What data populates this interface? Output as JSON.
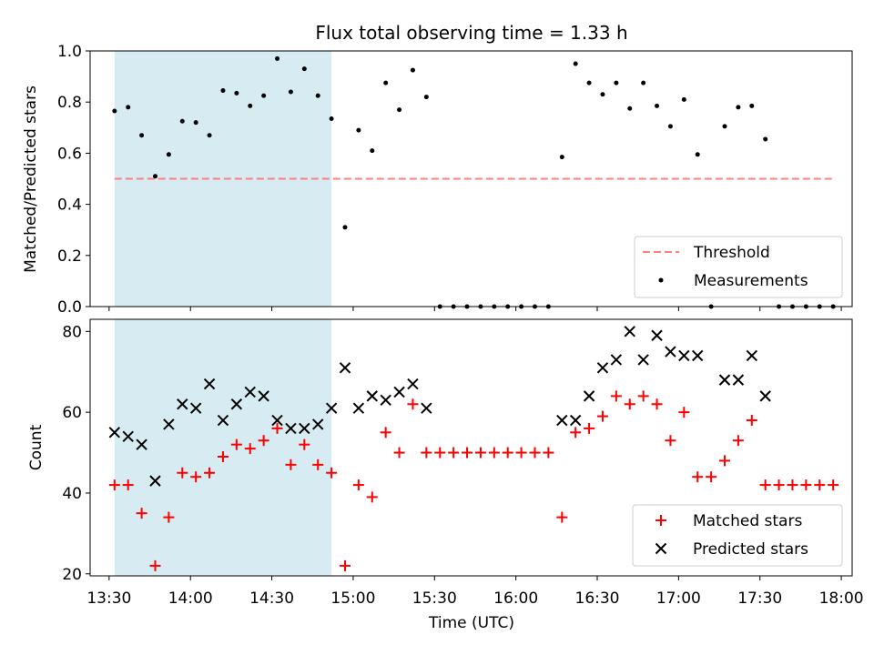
{
  "colors": {
    "threshold": "#ff7f7f",
    "measurement": "#000000",
    "matched": "#ff0000",
    "predicted": "#000000",
    "span": "#add8e6"
  },
  "chart_data": [
    {
      "type": "scatter",
      "title": "Flux total observing time = 1.33 h",
      "xlabel": "",
      "ylabel": "Matched/Predicted stars",
      "xlim": [
        "13:23",
        "18:04"
      ],
      "ylim": [
        0,
        1.0
      ],
      "yticks": [
        "0.0",
        "0.2",
        "0.4",
        "0.6",
        "0.8",
        "1.0"
      ],
      "shaded_span": [
        "13:32",
        "14:52"
      ],
      "legend_position": "lower-right",
      "threshold": {
        "name": "Threshold",
        "y": 0.5,
        "x": [
          "13:32",
          "17:57"
        ],
        "style": "dashed"
      },
      "series": [
        {
          "name": "Measurements",
          "marker": "dot",
          "x": [
            "13:32",
            "13:37",
            "13:42",
            "13:47",
            "13:52",
            "13:57",
            "14:02",
            "14:07",
            "14:12",
            "14:17",
            "14:22",
            "14:27",
            "14:32",
            "14:37",
            "14:42",
            "14:47",
            "14:52",
            "14:57",
            "15:02",
            "15:07",
            "15:12",
            "15:17",
            "15:22",
            "15:27",
            "15:32",
            "15:37",
            "15:42",
            "15:47",
            "15:52",
            "15:57",
            "16:02",
            "16:07",
            "16:12",
            "16:17",
            "16:22",
            "16:27",
            "16:32",
            "16:37",
            "16:42",
            "16:47",
            "16:52",
            "16:57",
            "17:02",
            "17:07",
            "17:12",
            "17:17",
            "17:22",
            "17:27",
            "17:32",
            "17:37",
            "17:42",
            "17:47",
            "17:52",
            "17:57"
          ],
          "y": [
            0.765,
            0.78,
            0.67,
            0.51,
            0.595,
            0.725,
            0.72,
            0.67,
            0.845,
            0.835,
            0.785,
            0.825,
            0.97,
            0.84,
            0.93,
            0.825,
            0.735,
            0.31,
            0.69,
            0.61,
            0.875,
            0.77,
            0.925,
            0.82,
            0.0,
            0.0,
            0.0,
            0.0,
            0.0,
            0.0,
            0.0,
            0.0,
            0.0,
            0.585,
            0.95,
            0.875,
            0.83,
            0.875,
            0.775,
            0.875,
            0.785,
            0.705,
            0.81,
            0.595,
            0.0,
            0.705,
            0.78,
            0.785,
            0.655,
            0.0,
            0.0,
            0.0,
            0.0,
            0.0
          ]
        }
      ]
    },
    {
      "type": "scatter",
      "xlabel": "Time (UTC)",
      "ylabel": "Count",
      "xlim": [
        "13:23",
        "18:04"
      ],
      "ylim": [
        19.5,
        83
      ],
      "yticks": [
        "20",
        "40",
        "60",
        "80"
      ],
      "xticks": [
        "13:30",
        "14:00",
        "14:30",
        "15:00",
        "15:30",
        "16:00",
        "16:30",
        "17:00",
        "17:30",
        "18:00"
      ],
      "shaded_span": [
        "13:32",
        "14:52"
      ],
      "legend_position": "lower-right",
      "series": [
        {
          "name": "Matched stars",
          "marker": "plus",
          "x": [
            "13:32",
            "13:37",
            "13:42",
            "13:47",
            "13:52",
            "13:57",
            "14:02",
            "14:07",
            "14:12",
            "14:17",
            "14:22",
            "14:27",
            "14:32",
            "14:37",
            "14:42",
            "14:47",
            "14:52",
            "14:57",
            "15:02",
            "15:07",
            "15:12",
            "15:17",
            "15:22",
            "15:27",
            "15:32",
            "15:37",
            "15:42",
            "15:47",
            "15:52",
            "15:57",
            "16:02",
            "16:07",
            "16:12",
            "16:17",
            "16:22",
            "16:27",
            "16:32",
            "16:37",
            "16:42",
            "16:47",
            "16:52",
            "16:57",
            "17:02",
            "17:07",
            "17:12",
            "17:17",
            "17:22",
            "17:27",
            "17:32",
            "17:37",
            "17:42",
            "17:47",
            "17:52",
            "17:57"
          ],
          "y": [
            42,
            42,
            35,
            22,
            34,
            45,
            44,
            45,
            49,
            52,
            51,
            53,
            56,
            47,
            52,
            47,
            45,
            22,
            42,
            39,
            55,
            50,
            62,
            50,
            50,
            50,
            50,
            50,
            50,
            50,
            50,
            50,
            50,
            34,
            55,
            56,
            59,
            64,
            62,
            64,
            62,
            53,
            60,
            44,
            44,
            48,
            53,
            58,
            42,
            42,
            42,
            42,
            42,
            42
          ]
        },
        {
          "name": "Predicted stars",
          "marker": "x",
          "x": [
            "13:32",
            "13:37",
            "13:42",
            "13:47",
            "13:52",
            "13:57",
            "14:02",
            "14:07",
            "14:12",
            "14:17",
            "14:22",
            "14:27",
            "14:32",
            "14:37",
            "14:42",
            "14:47",
            "14:52",
            "14:57",
            "15:02",
            "15:07",
            "15:12",
            "15:17",
            "15:22",
            "15:27",
            "16:17",
            "16:22",
            "16:27",
            "16:32",
            "16:37",
            "16:42",
            "16:47",
            "16:52",
            "16:57",
            "17:02",
            "17:07",
            "17:17",
            "17:22",
            "17:27",
            "17:32"
          ],
          "y": [
            55,
            54,
            52,
            43,
            57,
            62,
            61,
            67,
            58,
            62,
            65,
            64,
            58,
            56,
            56,
            57,
            61,
            71,
            61,
            64,
            63,
            65,
            67,
            61,
            58,
            58,
            64,
            71,
            73,
            80,
            73,
            79,
            75,
            74,
            74,
            68,
            68,
            74,
            64
          ]
        }
      ]
    }
  ]
}
